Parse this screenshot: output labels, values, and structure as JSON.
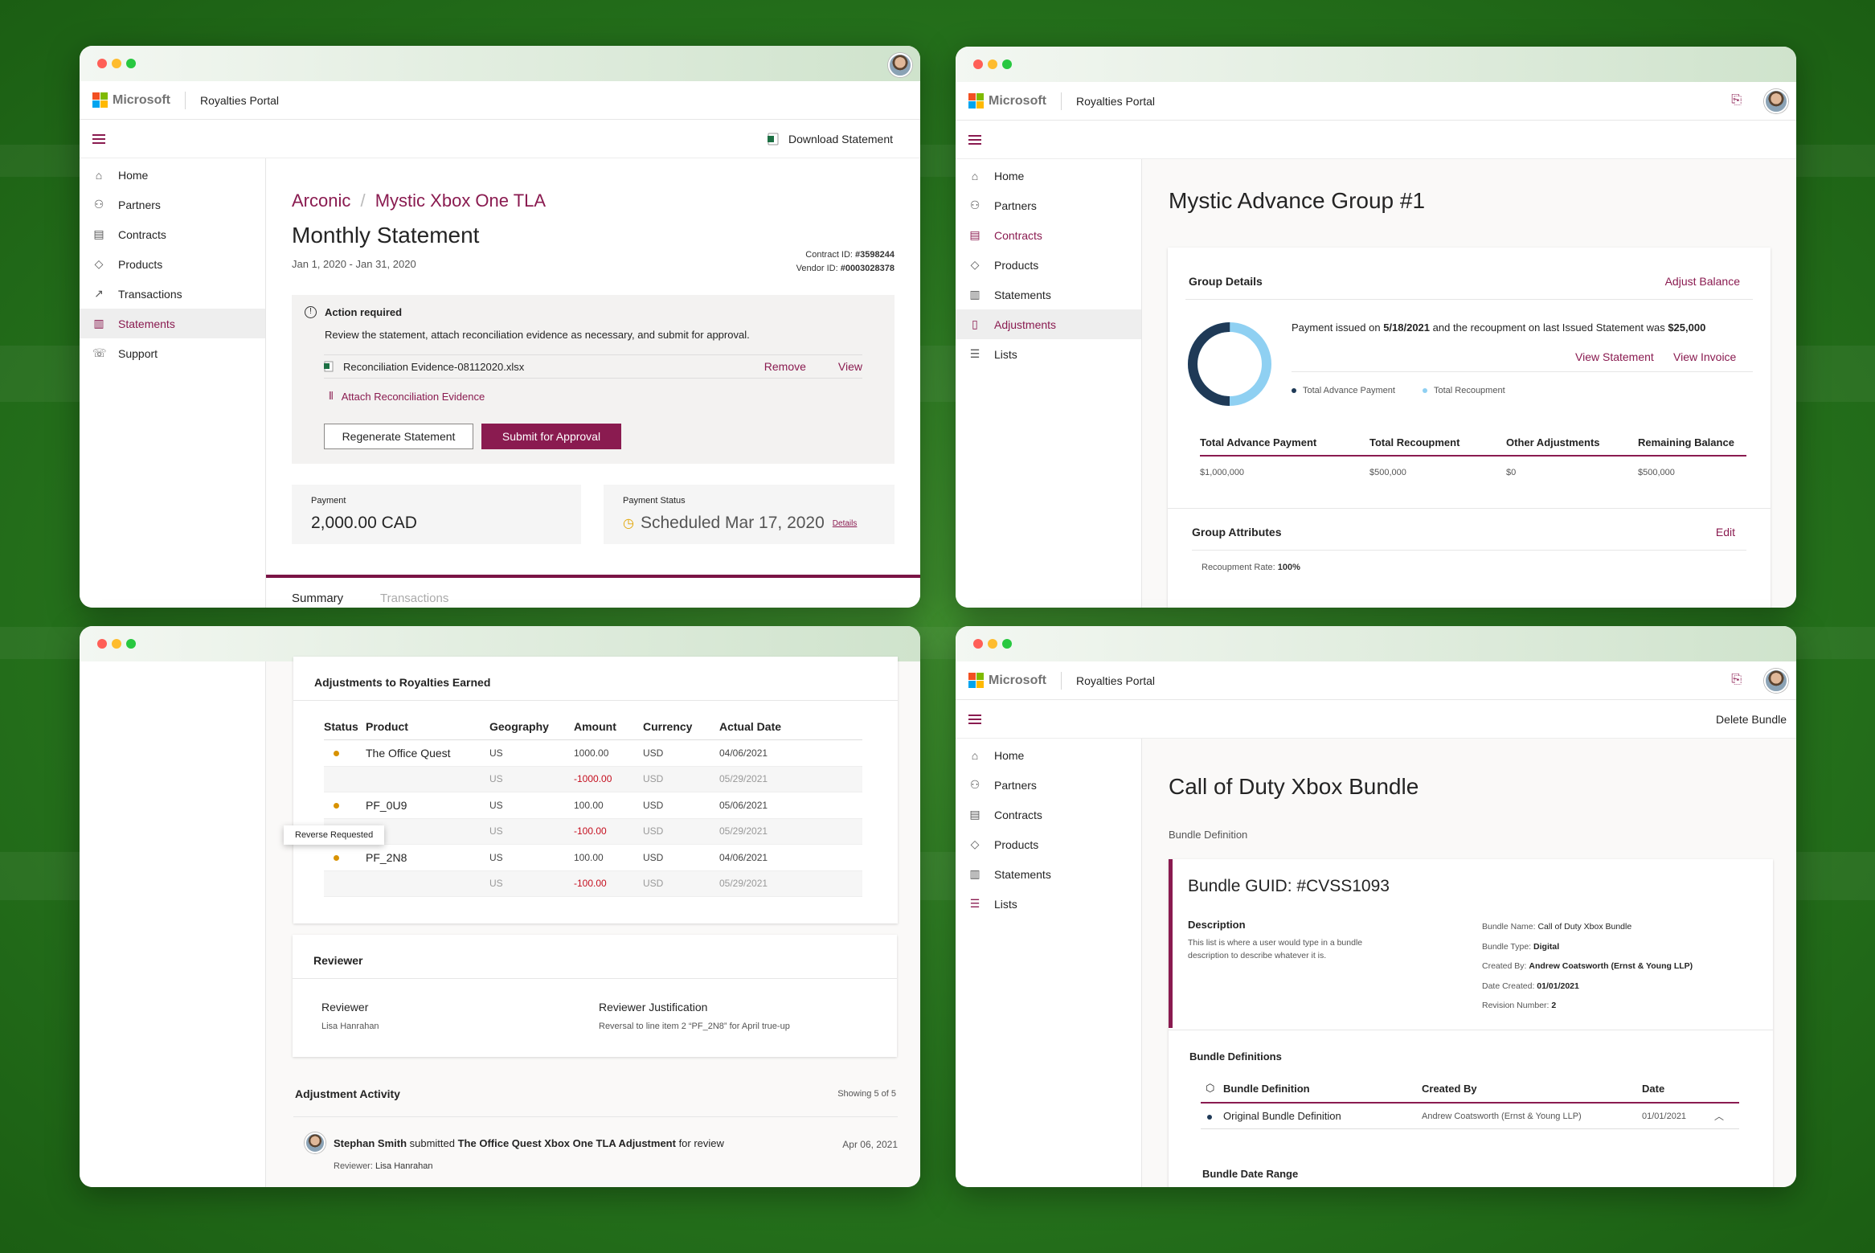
{
  "brand": {
    "ms_name": "Microsoft",
    "portal": "Royalties Portal",
    "accent": "#8a1b50"
  },
  "nav1": [
    {
      "label": "Home",
      "icon": "home-icon"
    },
    {
      "label": "Partners",
      "icon": "partners-icon"
    },
    {
      "label": "Contracts",
      "icon": "contracts-icon"
    },
    {
      "label": "Products",
      "icon": "products-icon"
    },
    {
      "label": "Transactions",
      "icon": "transactions-icon"
    },
    {
      "label": "Statements",
      "icon": "statements-icon"
    },
    {
      "label": "Support",
      "icon": "support-icon"
    }
  ],
  "nav2": [
    {
      "label": "Home"
    },
    {
      "label": "Partners"
    },
    {
      "label": "Contracts"
    },
    {
      "label": "Products"
    },
    {
      "label": "Statements"
    },
    {
      "label": "Adjustments"
    },
    {
      "label": "Lists"
    }
  ],
  "nav4": [
    {
      "label": "Home"
    },
    {
      "label": "Partners"
    },
    {
      "label": "Contracts"
    },
    {
      "label": "Products"
    },
    {
      "label": "Statements"
    },
    {
      "label": "Lists"
    }
  ],
  "w1": {
    "download": "Download Statement",
    "crumb1": "Arconic",
    "crumb_sep": "/",
    "crumb2": "Mystic Xbox One TLA",
    "title": "Monthly Statement",
    "dates": "Jan 1, 2020 - Jan 31, 2020",
    "contract_label": "Contract ID:",
    "contract_id": "#3598244",
    "vendor_label": "Vendor ID:",
    "vendor_id": "#0003028378",
    "action_title": "Action required",
    "action_text": "Review the statement, attach reconciliation evidence as necessary, and submit for approval.",
    "file": "Reconciliation Evidence-08112020.xlsx",
    "remove": "Remove",
    "view": "View",
    "attach": "Attach Reconciliation Evidence",
    "regenerate": "Regenerate Statement",
    "submit": "Submit for Approval",
    "payment_label": "Payment",
    "payment_value": "2,000.00 CAD",
    "status_label": "Payment Status",
    "status_value": "Scheduled Mar 17, 2020",
    "details": "Details",
    "tab_summary": "Summary",
    "tab_transactions": "Transactions"
  },
  "w2": {
    "title": "Mystic Advance Group #1",
    "group_details": "Group Details",
    "adjust": "Adjust Balance",
    "payment_pre": "Payment issued on ",
    "payment_date": "5/18/2021",
    "payment_mid": " and the recoupment on last Issued Statement was ",
    "payment_amt": "$25,000",
    "view_statement": "View Statement",
    "view_invoice": "View Invoice",
    "legend": [
      "Total Advance Payment",
      "Total Recoupment"
    ],
    "cols": [
      "Total Advance Payment",
      "Total Recoupment",
      "Other Adjustments",
      "Remaining Balance"
    ],
    "vals": [
      "$1,000,000",
      "$500,000",
      "$0",
      "$500,000"
    ],
    "attributes": "Group Attributes",
    "edit": "Edit",
    "rate_label": "Recoupment Rate:",
    "rate": "100%",
    "donut_colors": [
      "#1f3a57",
      "#8fd0f2"
    ],
    "donut_recoup_fraction": 0.5
  },
  "w3": {
    "section": "Adjustments to Royalties Earned",
    "cols": [
      "Status",
      "Product",
      "Geography",
      "Amount",
      "Currency",
      "Actual Date"
    ],
    "rows": [
      {
        "dot": true,
        "product": "The Office Quest",
        "geo": "US",
        "amount": "1000.00",
        "cur": "USD",
        "date": "04/06/2021",
        "neg": false
      },
      {
        "dot": false,
        "product": "",
        "geo": "US",
        "amount": "-1000.00",
        "cur": "USD",
        "date": "05/29/2021",
        "neg": true
      },
      {
        "dot": true,
        "product": "PF_0U9",
        "geo": "US",
        "amount": "100.00",
        "cur": "USD",
        "date": "05/06/2021",
        "neg": false
      },
      {
        "dot": false,
        "product": "",
        "geo": "US",
        "amount": "-100.00",
        "cur": "USD",
        "date": "05/29/2021",
        "neg": true
      },
      {
        "dot": true,
        "product": "PF_2N8",
        "geo": "US",
        "amount": "100.00",
        "cur": "USD",
        "date": "04/06/2021",
        "neg": false
      },
      {
        "dot": false,
        "product": "",
        "geo": "US",
        "amount": "-100.00",
        "cur": "USD",
        "date": "05/29/2021",
        "neg": true
      }
    ],
    "tooltip": "Reverse Requested",
    "reviewer_section": "Reviewer",
    "reviewer_label": "Reviewer",
    "reviewer_name": "Lisa Hanrahan",
    "justification_label": "Reviewer Justification",
    "justification": "Reversal to line item 2 “PF_2N8” for April true-up",
    "activity": "Adjustment Activity",
    "showing": "Showing 5 of 5",
    "act_user": "Stephan Smith",
    "act_verb": " submitted ",
    "act_item": "The Office Quest Xbox One TLA Adjustment",
    "act_tail": " for review",
    "act_date": "Apr 06, 2021",
    "act_reviewer_label": "Reviewer:",
    "act_reviewer": "Lisa Hanrahan"
  },
  "w4": {
    "delete": "Delete Bundle",
    "title": "Call of Duty Xbox Bundle",
    "subtitle": "Bundle Definition",
    "guid": "Bundle GUID: #CVSS1093",
    "desc_label": "Description",
    "desc_text": "This list is where a user would type in a bundle description to describe whatever it is.",
    "meta": [
      {
        "k": "Bundle Name:",
        "v": "Call of Duty Xbox Bundle"
      },
      {
        "k": "Bundle Type:",
        "v": "Digital"
      },
      {
        "k": "Created By:",
        "v": "Andrew Coatsworth (Ernst & Young LLP)"
      },
      {
        "k": "Date Created:",
        "v": "01/01/2021"
      },
      {
        "k": "Revision Number:",
        "v": "2"
      }
    ],
    "definitions": "Bundle Definitions",
    "cols": [
      "Bundle Definition",
      "Created By",
      "Date"
    ],
    "row": {
      "name": "Original Bundle Definition",
      "by": "Andrew Coatsworth (Ernst & Young LLP)",
      "date": "01/01/2021"
    },
    "date_range": "Bundle Date Range"
  }
}
